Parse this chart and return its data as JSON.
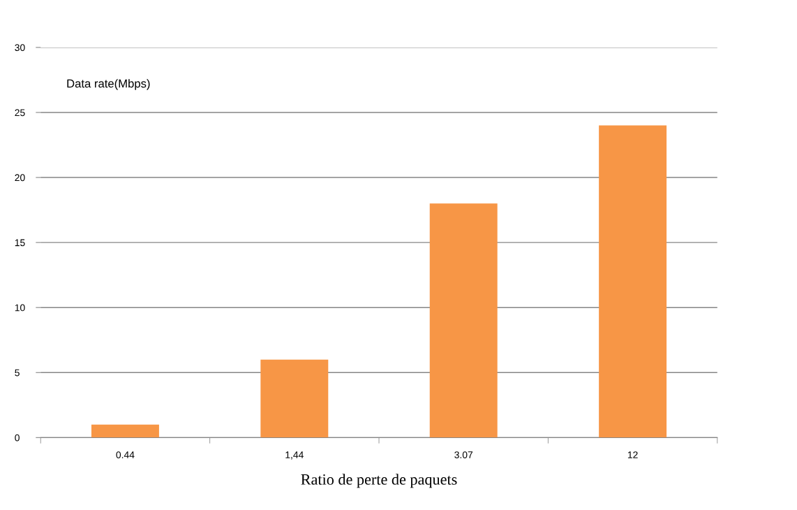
{
  "chart_data": {
    "type": "bar",
    "ylabel": "Data rate(Mbps)",
    "xlabel": "Ratio de perte de paquets",
    "categories": [
      "0.44",
      "1,44",
      "3.07",
      "12"
    ],
    "values": [
      1,
      6,
      18,
      24
    ],
    "color": "#f79646",
    "ylim": [
      0,
      30
    ],
    "yticks": [
      0,
      5,
      10,
      15,
      20,
      25,
      30
    ],
    "grid": "y",
    "legend": false
  }
}
